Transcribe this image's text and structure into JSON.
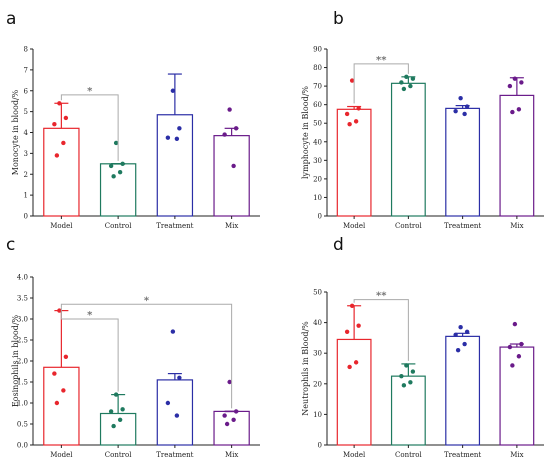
{
  "figure": {
    "panel_letters": [
      "a",
      "b",
      "c",
      "d"
    ]
  },
  "chart_data": [
    {
      "type": "bar",
      "panel": "a",
      "categories": [
        "Model",
        "Control",
        "Treatment",
        "Mix"
      ],
      "colors": [
        "#e8262d",
        "#1f7a5f",
        "#2b2ea6",
        "#6a1b8a"
      ],
      "ylabel": "Monocyte in blood/%",
      "xlabel": "",
      "ylim": [
        0,
        8
      ],
      "yticks": [
        0,
        1,
        2,
        3,
        4,
        5,
        6,
        7,
        8
      ],
      "yticklabels": [
        "0",
        "1",
        "2",
        "3",
        "4",
        "5",
        "6",
        "7",
        "8"
      ],
      "means": [
        4.2,
        2.5,
        4.85,
        3.85
      ],
      "err_upper": [
        5.4,
        2.5,
        6.8,
        4.2
      ],
      "points": [
        [
          5.4,
          4.7,
          4.4,
          3.5,
          2.9
        ],
        [
          3.5,
          2.5,
          2.4,
          2.1,
          1.9
        ],
        [
          6.0,
          4.2,
          3.75,
          3.7
        ],
        [
          5.1,
          4.2,
          3.9,
          2.4
        ]
      ],
      "significance": [
        {
          "from": 0,
          "to": 1,
          "y": 5.8,
          "label": "*"
        }
      ]
    },
    {
      "type": "bar",
      "panel": "b",
      "categories": [
        "Model",
        "Control",
        "Treatment",
        "Mix"
      ],
      "colors": [
        "#e8262d",
        "#1f7a5f",
        "#2b2ea6",
        "#6a1b8a"
      ],
      "ylabel": "lymphocyte in Blood/%",
      "xlabel": "",
      "ylim": [
        0,
        90
      ],
      "yticks": [
        0,
        10,
        20,
        30,
        40,
        50,
        60,
        70,
        80,
        90
      ],
      "yticklabels": [
        "0",
        "10",
        "20",
        "30",
        "40",
        "50",
        "60",
        "70",
        "80",
        "90"
      ],
      "means": [
        57.5,
        71.5,
        58,
        65
      ],
      "err_upper": [
        59,
        75,
        59.5,
        74.5
      ],
      "points": [
        [
          73,
          58,
          55,
          51,
          49.5
        ],
        [
          75,
          74,
          72,
          70,
          68.5
        ],
        [
          63.5,
          59,
          56.5,
          55
        ],
        [
          74,
          72,
          70,
          57.5,
          56
        ]
      ],
      "significance": [
        {
          "from": 0,
          "to": 1,
          "y": 82,
          "label": "**"
        }
      ]
    },
    {
      "type": "bar",
      "panel": "c",
      "categories": [
        "Model",
        "Control",
        "Treatment",
        "Mix"
      ],
      "colors": [
        "#e8262d",
        "#1f7a5f",
        "#2b2ea6",
        "#6a1b8a"
      ],
      "ylabel": "Eosinophils in blood/%",
      "xlabel": "",
      "ylim": [
        0,
        4
      ],
      "yticks": [
        0,
        0.5,
        1.0,
        1.5,
        2.0,
        2.5,
        3.0,
        3.5,
        4.0
      ],
      "yticklabels": [
        "0.0",
        "0.5",
        "1.0",
        "1.5",
        "2.0",
        "2.5",
        "3.0",
        "3.5",
        "4.0"
      ],
      "means": [
        1.85,
        0.75,
        1.55,
        0.8
      ],
      "err_upper": [
        3.2,
        1.2,
        1.7,
        0.8
      ],
      "points": [
        [
          3.2,
          2.1,
          1.7,
          1.3,
          1.0
        ],
        [
          1.2,
          0.85,
          0.8,
          0.6,
          0.45
        ],
        [
          2.7,
          1.6,
          1.0,
          0.7
        ],
        [
          1.5,
          0.8,
          0.7,
          0.6,
          0.5
        ]
      ],
      "significance": [
        {
          "from": 0,
          "to": 1,
          "y": 3.0,
          "label": "*"
        },
        {
          "from": 0,
          "to": 3,
          "y": 3.35,
          "label": "*"
        }
      ]
    },
    {
      "type": "bar",
      "panel": "d",
      "categories": [
        "Model",
        "Control",
        "Treatment",
        "Mix"
      ],
      "colors": [
        "#e8262d",
        "#1f7a5f",
        "#2b2ea6",
        "#6a1b8a"
      ],
      "ylabel": "Neutrophils in Blood/%",
      "xlabel": "",
      "ylim": [
        0,
        50
      ],
      "yticks": [
        0,
        10,
        20,
        30,
        40,
        50
      ],
      "yticklabels": [
        "0",
        "10",
        "20",
        "30",
        "40",
        "50"
      ],
      "means": [
        34.5,
        22.5,
        35.5,
        32
      ],
      "err_upper": [
        45.5,
        26.5,
        36.5,
        33
      ],
      "points": [
        [
          45.5,
          39,
          37,
          27,
          25.5
        ],
        [
          26,
          24,
          22.5,
          20.5,
          19.5
        ],
        [
          38.5,
          37,
          36,
          33,
          31
        ],
        [
          39.5,
          33,
          32,
          29,
          26
        ]
      ],
      "significance": [
        {
          "from": 0,
          "to": 1,
          "y": 47.5,
          "label": "**"
        }
      ]
    }
  ]
}
